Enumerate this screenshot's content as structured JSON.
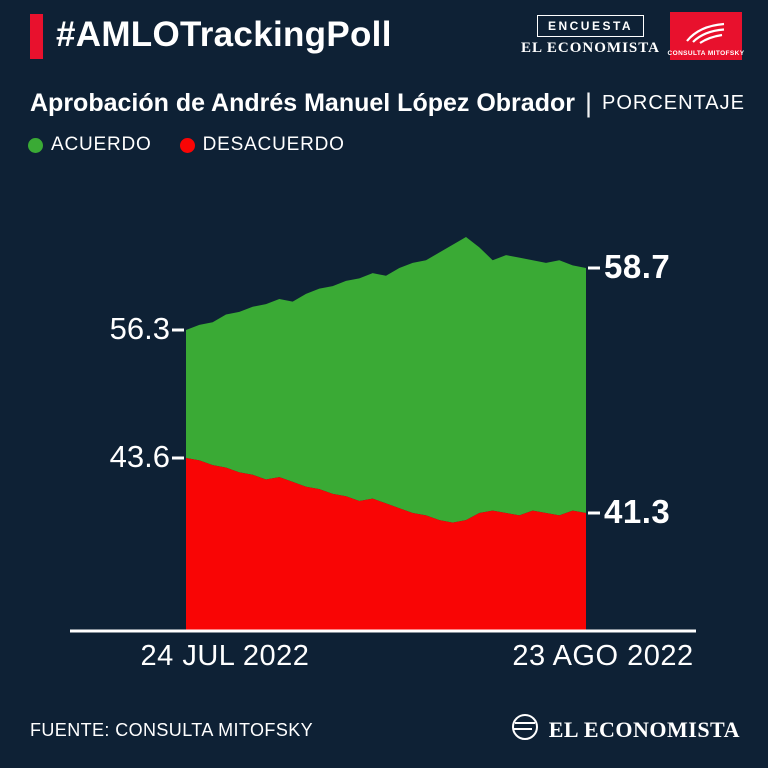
{
  "header": {
    "hashtag": "#AMLOTrackingPoll",
    "encuesta_badge": "ENCUESTA",
    "economista_masthead": "EL ECONOMISTA",
    "mitofsky_label": "CONSULTA MITOFSKY",
    "accent_color": "#e8112d"
  },
  "title": {
    "main": "Aprobación de Andrés Manuel López Obrador",
    "separator": "|",
    "unit": "PORCENTAJE"
  },
  "legend": [
    {
      "label": "ACUERDO",
      "color": "#3aaa35"
    },
    {
      "label": "DESACUERDO",
      "color": "#f90505"
    }
  ],
  "chart_data": {
    "type": "area",
    "stacked": true,
    "title": "Aprobación de Andrés Manuel López Obrador (PORCENTAJE)",
    "x_labels": [
      "24 JUL 2022",
      "23 AGO 2022"
    ],
    "axis_color": "#ffffff",
    "background_color": "#0e2135",
    "legend_position": "top-left",
    "grid": false,
    "series": [
      {
        "name": "ACUERDO",
        "color": "#3aaa35",
        "start_label": "56.3",
        "end_label": "58.7",
        "values": [
          56.3,
          56.5,
          56.6,
          56.9,
          57.0,
          57.2,
          57.3,
          57.5,
          57.4,
          57.7,
          57.9,
          58.0,
          58.2,
          58.3,
          58.5,
          58.4,
          58.7,
          58.9,
          59.0,
          59.3,
          59.6,
          59.9,
          59.5,
          59.0,
          59.2,
          59.1,
          59.0,
          58.9,
          59.0,
          58.8,
          58.7
        ]
      },
      {
        "name": "DESACUERDO",
        "color": "#f90505",
        "start_label": "43.6",
        "end_label": "41.3",
        "values": [
          43.6,
          43.5,
          43.3,
          43.2,
          43.0,
          42.9,
          42.7,
          42.8,
          42.6,
          42.4,
          42.3,
          42.1,
          42.0,
          41.8,
          41.9,
          41.7,
          41.5,
          41.3,
          41.2,
          41.0,
          40.9,
          41.0,
          41.3,
          41.4,
          41.3,
          41.2,
          41.4,
          41.3,
          41.2,
          41.4,
          41.3
        ]
      }
    ]
  },
  "footer": {
    "source": "FUENTE: CONSULTA MITOFSKY",
    "brand": "EL ECONOMISTA"
  }
}
